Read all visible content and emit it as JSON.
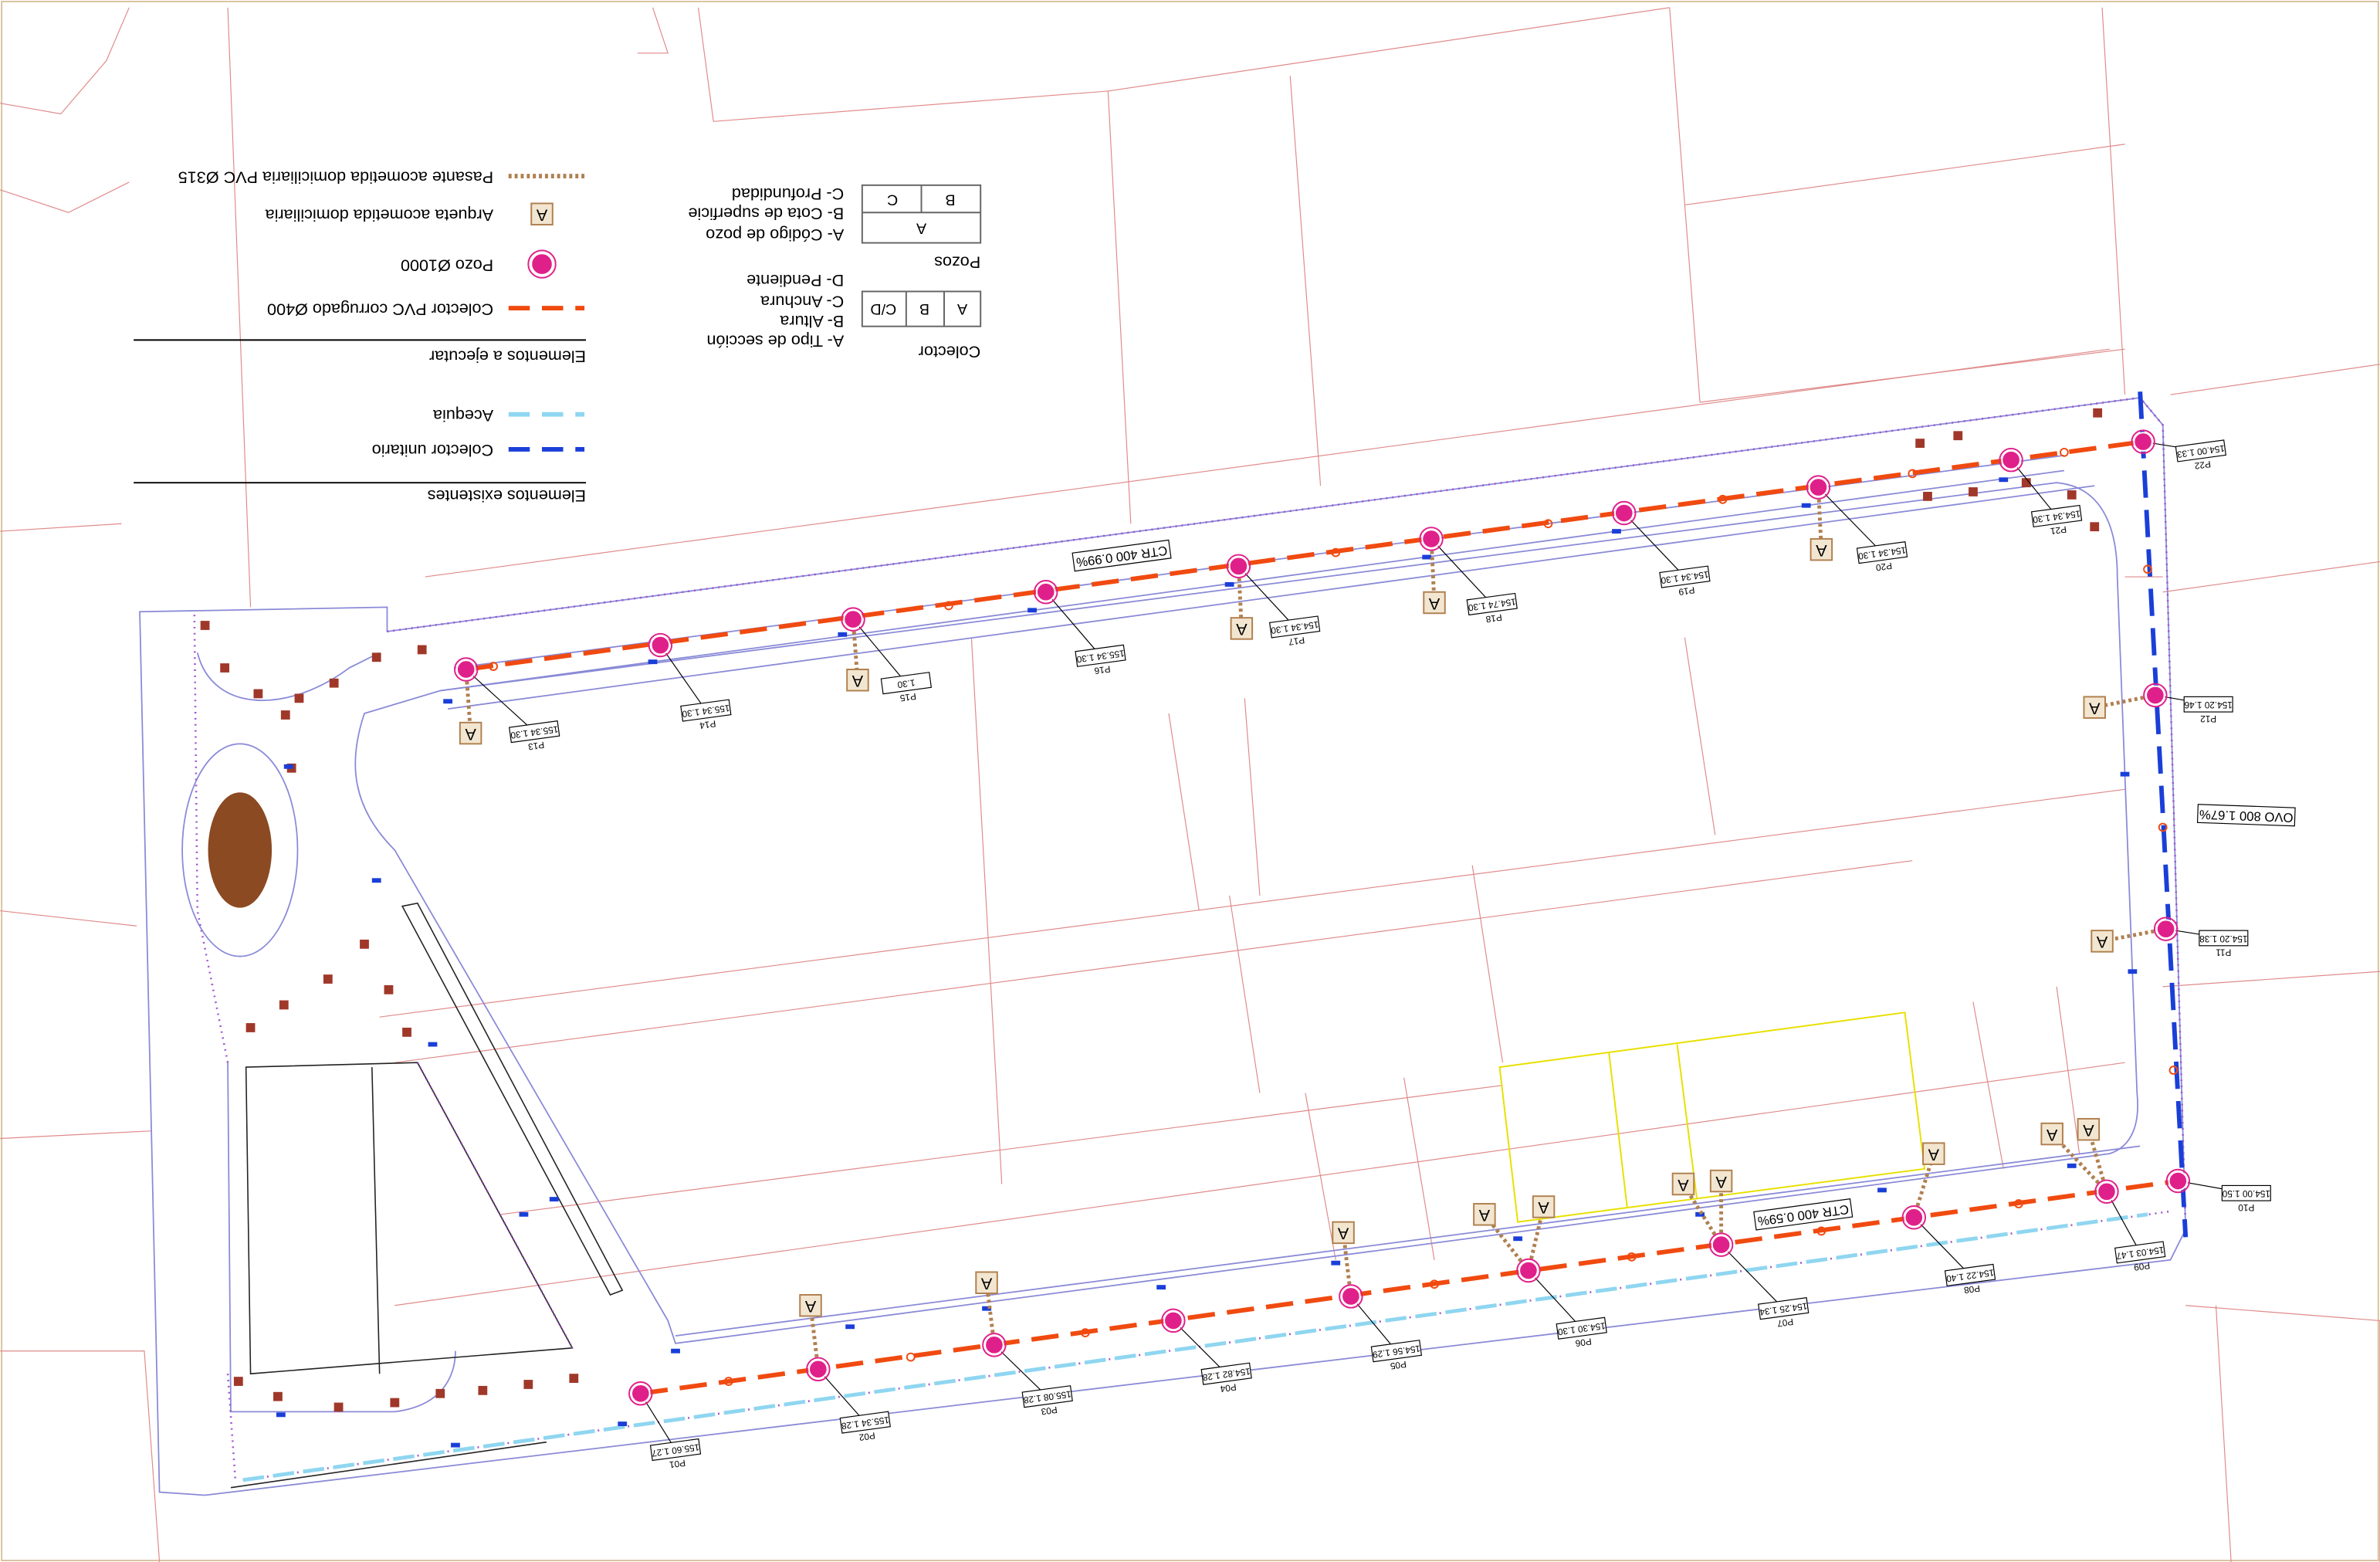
{
  "legend": {
    "existing_title": "Elementos existentes",
    "existing": [
      "Colector unitario",
      "Acequia"
    ],
    "new_title": "Elementos a ejecutar",
    "new": [
      "Colector PVC corrugado Ø400",
      "Pozo Ø1000",
      "Arqueta acometida domiciliaria",
      "Pasante acometida domiciliaria PVC Ø315"
    ]
  },
  "colector_key": {
    "title": "Colector",
    "cells": [
      "A",
      "B",
      "C/D"
    ],
    "notes": [
      "A- Tipo de sección",
      "B- Altura",
      "C- Anchura",
      "D- Pendiente"
    ]
  },
  "pozos_key": {
    "title": "Pozos",
    "cells": [
      "A",
      "B",
      "C"
    ],
    "notes": [
      "A- Código de pozo",
      "B- Cota de superficie",
      "C- Profundidad"
    ]
  },
  "pipe_labels": [
    "CTR 400 0.99%",
    "CTR 400 0.59%",
    "OVO 800 1.67%"
  ],
  "arqueta_symbol": "A",
  "manholes": [
    {
      "code": "P01",
      "label": "155.60 1.27"
    },
    {
      "code": "P02",
      "label": "155.34 1.28"
    },
    {
      "code": "P03",
      "label": "155.08 1.28"
    },
    {
      "code": "P04",
      "label": "154.82 1.28"
    },
    {
      "code": "P05",
      "label": "154.56 1.29"
    },
    {
      "code": "P06",
      "label": "154.30 1.30"
    },
    {
      "code": "P07",
      "label": "154.25 1.34"
    },
    {
      "code": "P08",
      "label": "154.22 1.40"
    },
    {
      "code": "P09",
      "label": "154.03 1.47"
    },
    {
      "code": "P10",
      "label": "154.00 1.50"
    },
    {
      "code": "P11",
      "label": "154.20 1.38"
    },
    {
      "code": "P12",
      "label": "154.20 1.46"
    },
    {
      "code": "P13",
      "label": "155.34 1.30"
    },
    {
      "code": "P14",
      "label": "155.34 1.30"
    },
    {
      "code": "P15",
      "label": "1.30"
    },
    {
      "code": "P16",
      "label": "155.34 1.30"
    },
    {
      "code": "P17",
      "label": "154.34 1.30"
    },
    {
      "code": "P18",
      "label": "154.74 1.30"
    },
    {
      "code": "P19",
      "label": "154.34 1.30"
    },
    {
      "code": "P20",
      "label": "154.34 1.30"
    },
    {
      "code": "P21",
      "label": "154.34 1.30"
    },
    {
      "code": "P22",
      "label": "154.00 1.33"
    }
  ]
}
